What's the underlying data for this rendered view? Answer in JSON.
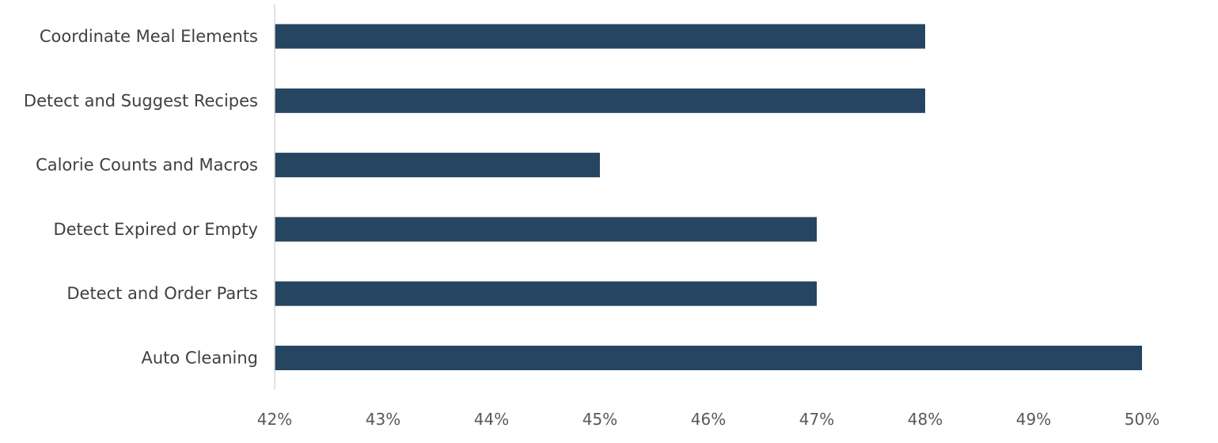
{
  "chart_data": {
    "type": "bar",
    "orientation": "horizontal",
    "categories": [
      "Coordinate Meal Elements",
      "Detect and Suggest Recipes",
      "Calorie Counts and Macros",
      "Detect Expired or Empty",
      "Detect and Order Parts",
      "Auto Cleaning"
    ],
    "values": [
      48,
      48,
      45,
      47,
      47,
      50
    ],
    "unit": "%",
    "xlim": [
      42,
      50
    ],
    "ticks": [
      "42%",
      "43%",
      "44%",
      "45%",
      "46%",
      "47%",
      "48%",
      "49%",
      "50%"
    ],
    "tick_values": [
      42,
      43,
      44,
      45,
      46,
      47,
      48,
      49,
      50
    ],
    "title": "",
    "xlabel": "",
    "ylabel": "",
    "grid": false,
    "bar_color": "#264560"
  }
}
